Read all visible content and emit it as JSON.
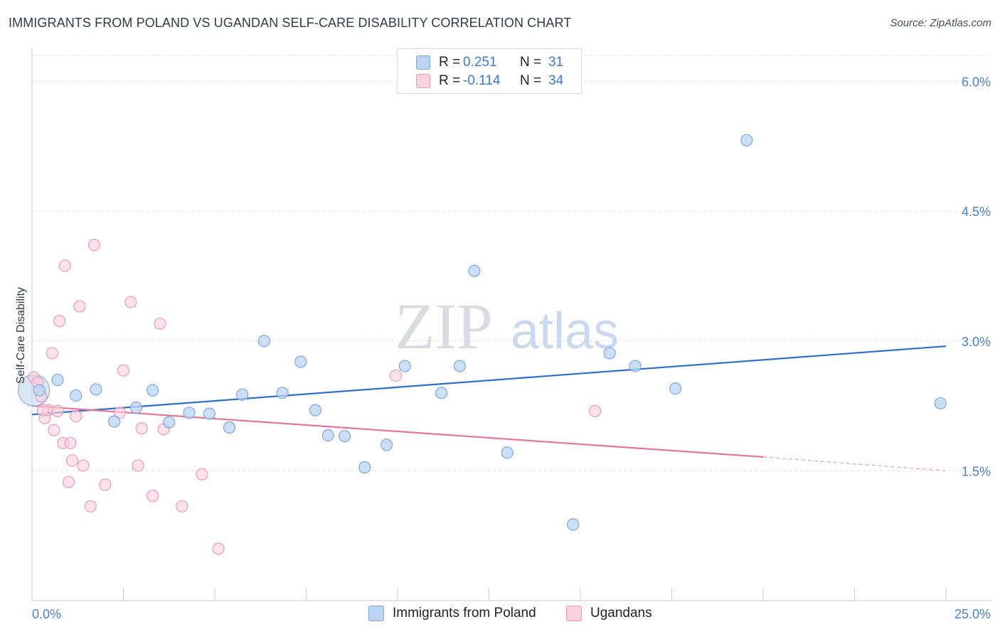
{
  "header": {
    "title": "IMMIGRANTS FROM POLAND VS UGANDAN SELF-CARE DISABILITY CORRELATION CHART",
    "source": "Source: ZipAtlas.com"
  },
  "watermark": {
    "zip": "ZIP",
    "atlas": "atlas"
  },
  "legend": {
    "r_label": "R =",
    "n_label": "N =",
    "rows": [
      {
        "r": "0.251",
        "n": "31"
      },
      {
        "r": "-0.114",
        "n": "34"
      }
    ]
  },
  "bottom_legend": {
    "poland": "Immigrants from Poland",
    "ugandans": "Ugandans"
  },
  "colors": {
    "poland_fill": "#bcd4f4",
    "poland_stroke": "#7fa6dc",
    "poland_line": "#2f6fd0",
    "ugandans_fill": "#fad1de",
    "ugandans_stroke": "#f09ab4",
    "ugandans_line": "#e8739a",
    "tick_text": "#4a7fd0"
  },
  "chart_data": {
    "type": "scatter",
    "title": "IMMIGRANTS FROM POLAND VS UGANDAN SELF-CARE DISABILITY CORRELATION CHART",
    "xlabel": "",
    "ylabel": "Self-Care Disability",
    "xlim": [
      0,
      25
    ],
    "ylim": [
      0,
      6.3
    ],
    "x_tick_labels": [
      "0.0%",
      "25.0%"
    ],
    "y_ticks": [
      1.5,
      3.0,
      4.5,
      6.0
    ],
    "y_tick_labels": [
      "1.5%",
      "3.0%",
      "4.5%",
      "6.0%"
    ],
    "grid": "horizontal dashed",
    "legend_position": "top-center",
    "series": [
      {
        "name": "Immigrants from Poland",
        "r": 0.251,
        "n": 31,
        "trend": {
          "x": [
            0,
            25
          ],
          "y": [
            2.15,
            2.94
          ]
        },
        "points": [
          [
            0.2,
            2.43
          ],
          [
            0.7,
            2.55
          ],
          [
            1.2,
            2.37
          ],
          [
            1.75,
            2.44
          ],
          [
            2.25,
            2.07
          ],
          [
            2.85,
            2.23
          ],
          [
            3.3,
            2.43
          ],
          [
            3.75,
            2.06
          ],
          [
            4.3,
            2.17
          ],
          [
            4.85,
            2.16
          ],
          [
            5.4,
            2.0
          ],
          [
            5.75,
            2.38
          ],
          [
            6.35,
            3.0
          ],
          [
            6.85,
            2.4
          ],
          [
            7.35,
            2.76
          ],
          [
            7.75,
            2.2
          ],
          [
            8.1,
            1.91
          ],
          [
            8.55,
            1.9
          ],
          [
            9.1,
            1.54
          ],
          [
            9.7,
            1.8
          ],
          [
            10.2,
            2.71
          ],
          [
            11.2,
            2.4
          ],
          [
            11.7,
            2.71
          ],
          [
            12.1,
            3.81
          ],
          [
            13.0,
            1.71
          ],
          [
            14.8,
            0.88
          ],
          [
            15.8,
            2.86
          ],
          [
            16.5,
            2.71
          ],
          [
            17.6,
            2.45
          ],
          [
            19.55,
            5.32
          ],
          [
            24.85,
            2.28
          ]
        ]
      },
      {
        "name": "Ugandans",
        "r": -0.114,
        "n": 34,
        "trend": {
          "x": [
            0,
            20
          ],
          "y": [
            2.25,
            1.66
          ]
        },
        "trend_dashed": {
          "x": [
            20,
            25
          ],
          "y": [
            1.66,
            1.5
          ]
        },
        "points": [
          [
            0.05,
            2.58
          ],
          [
            0.15,
            2.52
          ],
          [
            0.25,
            2.36
          ],
          [
            0.35,
            2.11
          ],
          [
            0.45,
            2.2
          ],
          [
            0.55,
            2.86
          ],
          [
            0.6,
            1.97
          ],
          [
            0.7,
            2.19
          ],
          [
            0.75,
            3.23
          ],
          [
            0.85,
            1.82
          ],
          [
            0.9,
            3.87
          ],
          [
            1.0,
            1.37
          ],
          [
            1.05,
            1.82
          ],
          [
            1.1,
            1.62
          ],
          [
            1.2,
            2.13
          ],
          [
            1.3,
            3.4
          ],
          [
            1.4,
            1.56
          ],
          [
            1.6,
            1.09
          ],
          [
            1.7,
            4.11
          ],
          [
            2.0,
            1.34
          ],
          [
            2.4,
            2.17
          ],
          [
            2.5,
            2.66
          ],
          [
            2.7,
            3.45
          ],
          [
            2.9,
            1.56
          ],
          [
            3.0,
            1.99
          ],
          [
            3.3,
            1.21
          ],
          [
            3.5,
            3.2
          ],
          [
            3.6,
            1.98
          ],
          [
            4.1,
            1.09
          ],
          [
            4.65,
            1.46
          ],
          [
            5.1,
            0.6
          ],
          [
            9.95,
            2.6
          ],
          [
            15.4,
            2.19
          ],
          [
            0.3,
            2.2
          ]
        ]
      }
    ]
  }
}
